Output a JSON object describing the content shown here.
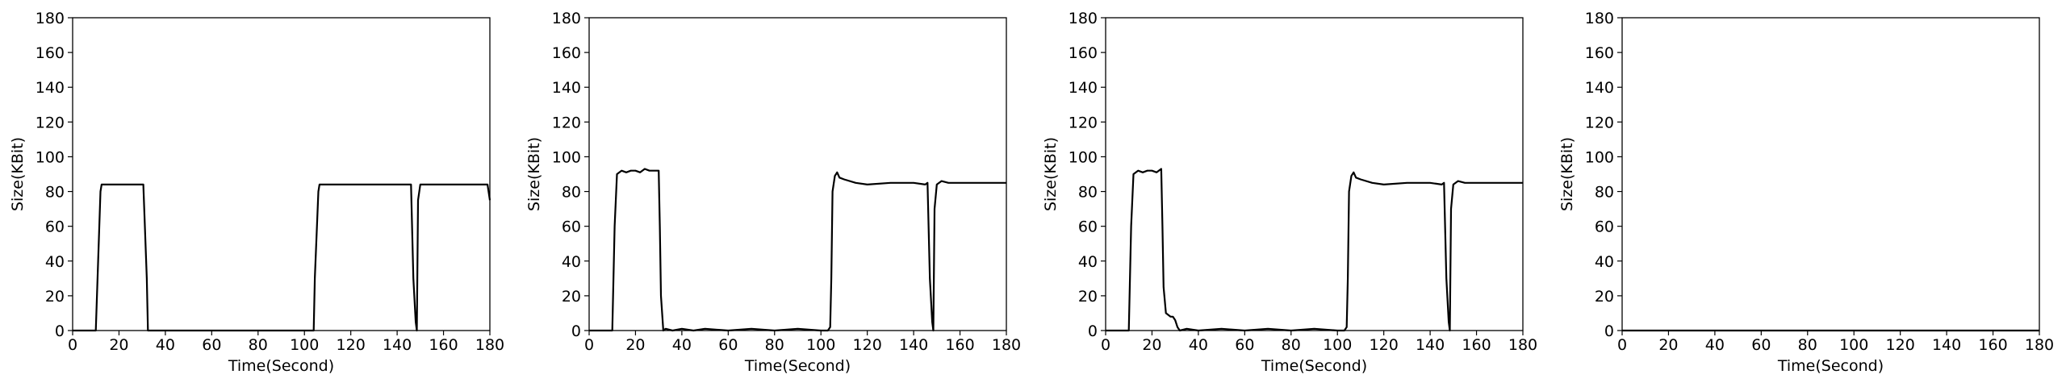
{
  "chart_data": [
    {
      "type": "line",
      "title": "",
      "xlabel": "Time(Second)",
      "ylabel": "Size(KBit)",
      "xlim": [
        0,
        180
      ],
      "ylim": [
        0,
        180
      ],
      "xticks": [
        "0",
        "20",
        "40",
        "60",
        "80",
        "100",
        "120",
        "140",
        "160",
        "180"
      ],
      "yticks": [
        "0",
        "20",
        "40",
        "60",
        "80",
        "100",
        "120",
        "140",
        "160",
        "180"
      ],
      "grid": false,
      "series": [
        {
          "color": "#000000",
          "x": [
            0,
            10,
            11,
            12,
            12.5,
            15,
            20,
            25,
            30,
            30.5,
            32,
            32.5,
            40,
            60,
            80,
            100,
            104,
            104.5,
            106,
            106.5,
            115,
            125,
            135,
            145,
            146,
            147,
            148,
            148.5,
            149,
            150,
            155,
            165,
            175,
            179,
            180
          ],
          "y": [
            0,
            0,
            40,
            80,
            84,
            84,
            84,
            84,
            84,
            84,
            30,
            0,
            0,
            0,
            0,
            0,
            0,
            30,
            80,
            84,
            84,
            84,
            84,
            84,
            84,
            30,
            5,
            0,
            75,
            84,
            84,
            84,
            84,
            84,
            75
          ]
        }
      ]
    },
    {
      "type": "line",
      "title": "",
      "xlabel": "Time(Second)",
      "ylabel": "Size(KBit)",
      "xlim": [
        0,
        180
      ],
      "ylim": [
        0,
        180
      ],
      "xticks": [
        "0",
        "20",
        "40",
        "60",
        "80",
        "100",
        "120",
        "140",
        "160",
        "180"
      ],
      "yticks": [
        "0",
        "20",
        "40",
        "60",
        "80",
        "100",
        "120",
        "140",
        "160",
        "180"
      ],
      "grid": false,
      "series": [
        {
          "color": "#000000",
          "x": [
            0,
            9,
            10,
            11,
            12,
            14,
            16,
            18,
            20,
            22,
            24,
            26,
            28,
            30,
            30.5,
            31,
            32,
            33,
            36,
            40,
            45,
            50,
            60,
            70,
            80,
            90,
            100,
            103,
            104,
            104.5,
            105,
            106,
            107,
            108,
            110,
            115,
            120,
            130,
            140,
            145,
            146,
            147,
            148,
            148.5,
            149,
            150,
            152,
            155,
            160,
            170,
            180
          ],
          "y": [
            0,
            0,
            0,
            60,
            90,
            92,
            91,
            92,
            92,
            91,
            93,
            92,
            92,
            92,
            60,
            20,
            0,
            1,
            0,
            1,
            0,
            1,
            0,
            1,
            0,
            1,
            0,
            0,
            2,
            30,
            80,
            89,
            91,
            88,
            87,
            85,
            84,
            85,
            85,
            84,
            85,
            30,
            5,
            0,
            70,
            84,
            86,
            85,
            85,
            85,
            85
          ]
        }
      ]
    },
    {
      "type": "line",
      "title": "",
      "xlabel": "Time(Second)",
      "ylabel": "Size(KBit)",
      "xlim": [
        0,
        180
      ],
      "ylim": [
        0,
        180
      ],
      "xticks": [
        "0",
        "20",
        "40",
        "60",
        "80",
        "100",
        "120",
        "140",
        "160",
        "180"
      ],
      "yticks": [
        "0",
        "20",
        "40",
        "60",
        "80",
        "100",
        "120",
        "140",
        "160",
        "180"
      ],
      "grid": false,
      "series": [
        {
          "color": "#000000",
          "x": [
            0,
            9,
            10,
            11,
            12,
            14,
            16,
            18,
            20,
            22,
            24,
            24.5,
            25,
            26,
            28,
            29,
            30,
            31,
            32,
            35,
            40,
            50,
            60,
            70,
            80,
            90,
            100,
            103,
            104,
            104.5,
            105,
            106,
            107,
            108,
            110,
            115,
            120,
            130,
            140,
            145,
            146,
            147,
            148,
            148.5,
            149,
            150,
            152,
            155,
            160,
            170,
            180
          ],
          "y": [
            0,
            0,
            0,
            60,
            90,
            92,
            91,
            92,
            92,
            91,
            93,
            60,
            25,
            10,
            8,
            8,
            6,
            2,
            0,
            1,
            0,
            1,
            0,
            1,
            0,
            1,
            0,
            0,
            2,
            30,
            80,
            89,
            91,
            88,
            87,
            85,
            84,
            85,
            85,
            84,
            85,
            30,
            5,
            0,
            70,
            84,
            86,
            85,
            85,
            85,
            85
          ]
        }
      ]
    },
    {
      "type": "line",
      "title": "",
      "xlabel": "Time(Second)",
      "ylabel": "Size(KBit)",
      "xlim": [
        0,
        180
      ],
      "ylim": [
        0,
        180
      ],
      "xticks": [
        "0",
        "20",
        "40",
        "60",
        "80",
        "100",
        "120",
        "140",
        "160",
        "180"
      ],
      "yticks": [
        "0",
        "20",
        "40",
        "60",
        "80",
        "100",
        "120",
        "140",
        "160",
        "180"
      ],
      "grid": false,
      "series": [
        {
          "color": "#000000",
          "x": [
            0,
            20,
            40,
            60,
            80,
            100,
            120,
            140,
            160,
            180
          ],
          "y": [
            0,
            0,
            0,
            0,
            0,
            0,
            0,
            0,
            0,
            0
          ]
        }
      ]
    }
  ]
}
